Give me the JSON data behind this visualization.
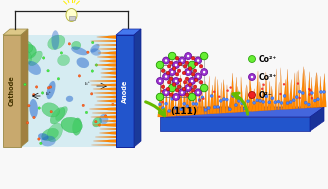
{
  "bg_color": "#f8f8f8",
  "cathode_color": "#c8a96e",
  "cathode_dark": "#a08040",
  "cathode_light": "#ddc888",
  "anode_color": "#2255cc",
  "anode_dark": "#1a3a99",
  "anode_light": "#4477ee",
  "orange_spike": "#ff8800",
  "orange_dark": "#cc5500",
  "wire_color": "#222222",
  "bulb_color": "#ffffcc",
  "bulb_base": "#cccccc",
  "co2_color": "#66ee33",
  "co2_edge": "#229900",
  "co3_color": "#9933cc",
  "co3_edge": "#660099",
  "o2_color": "#ee2222",
  "o2_edge": "#990000",
  "crystal_wire": "#666666",
  "plane_color": "#888888",
  "arrow_color": "#66bb00",
  "arrow_dark": "#448800",
  "substrate_front": "#2244bb",
  "substrate_top": "#4466dd",
  "substrate_right": "#1a3399",
  "title": "(111)",
  "legend_labels": [
    "Co²⁺",
    "Co³⁺",
    "O²⁻"
  ],
  "cathode_label": "Cathode",
  "anode_label": "Anode"
}
